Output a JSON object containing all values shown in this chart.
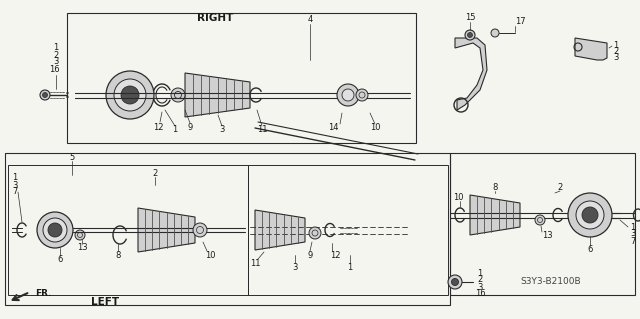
{
  "bg_color": "#f5f5f0",
  "line_color": "#2a2a2a",
  "diagram_code": "S3Y3-B2100B",
  "right_label": "RIGHT",
  "left_label": "LEFT",
  "fr_label": "FR.",
  "gray_fill": "#b0b0b0",
  "light_gray": "#d0d0d0",
  "dark_gray": "#505050"
}
